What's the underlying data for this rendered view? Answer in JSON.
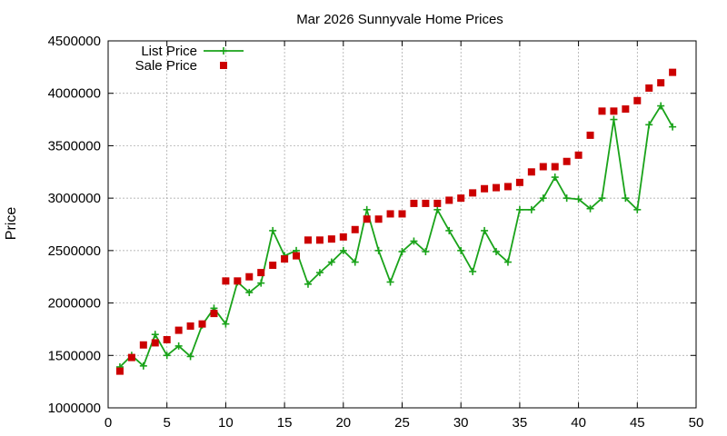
{
  "chart_data": {
    "type": "line",
    "title": "Mar 2026 Sunnyvale Home Prices",
    "xlabel": "",
    "ylabel": "Price",
    "xlim": [
      0,
      50
    ],
    "ylim": [
      1000000,
      4500000
    ],
    "xticks": [
      0,
      5,
      10,
      15,
      20,
      25,
      30,
      35,
      40,
      45,
      50
    ],
    "yticks": [
      1000000,
      1500000,
      2000000,
      2500000,
      3000000,
      3500000,
      4000000,
      4500000
    ],
    "grid": true,
    "legend_position": "top-left",
    "series": [
      {
        "name": "List Price",
        "style": "line-with-plus-markers",
        "color": "#1aa31a",
        "x": [
          1,
          2,
          3,
          4,
          5,
          6,
          7,
          8,
          9,
          10,
          11,
          12,
          13,
          14,
          15,
          16,
          17,
          18,
          19,
          20,
          21,
          22,
          23,
          24,
          25,
          26,
          27,
          28,
          29,
          30,
          31,
          32,
          33,
          34,
          35,
          36,
          37,
          38,
          39,
          40,
          41,
          42,
          43,
          44,
          45,
          46,
          47,
          48
        ],
        "values": [
          1390000,
          1500000,
          1400000,
          1700000,
          1500000,
          1590000,
          1490000,
          1790000,
          1950000,
          1800000,
          2200000,
          2100000,
          2190000,
          2690000,
          2450000,
          2500000,
          2180000,
          2290000,
          2390000,
          2500000,
          2390000,
          2890000,
          2500000,
          2200000,
          2490000,
          2590000,
          2490000,
          2890000,
          2690000,
          2500000,
          2300000,
          2690000,
          2490000,
          2390000,
          2890000,
          2890000,
          3000000,
          3200000,
          3000000,
          2990000,
          2900000,
          3000000,
          3750000,
          3000000,
          2890000,
          3700000,
          3880000,
          3680000
        ]
      },
      {
        "name": "Sale Price",
        "style": "square-markers",
        "color": "#cc0000",
        "x": [
          1,
          2,
          3,
          4,
          5,
          6,
          7,
          8,
          9,
          10,
          11,
          12,
          13,
          14,
          15,
          16,
          17,
          18,
          19,
          20,
          21,
          22,
          23,
          24,
          25,
          26,
          27,
          28,
          29,
          30,
          31,
          32,
          33,
          34,
          35,
          36,
          37,
          38,
          39,
          40,
          41,
          42,
          43,
          44,
          45,
          46,
          47,
          48
        ],
        "values": [
          1350000,
          1480000,
          1600000,
          1620000,
          1650000,
          1740000,
          1780000,
          1800000,
          1900000,
          2210000,
          2210000,
          2250000,
          2290000,
          2360000,
          2420000,
          2450000,
          2600000,
          2600000,
          2610000,
          2630000,
          2700000,
          2800000,
          2800000,
          2850000,
          2850000,
          2950000,
          2950000,
          2950000,
          2980000,
          3000000,
          3050000,
          3090000,
          3100000,
          3110000,
          3150000,
          3250000,
          3300000,
          3300000,
          3350000,
          3410000,
          3600000,
          3830000,
          3830000,
          3850000,
          3930000,
          4050000,
          4100000,
          4200000
        ]
      }
    ]
  }
}
